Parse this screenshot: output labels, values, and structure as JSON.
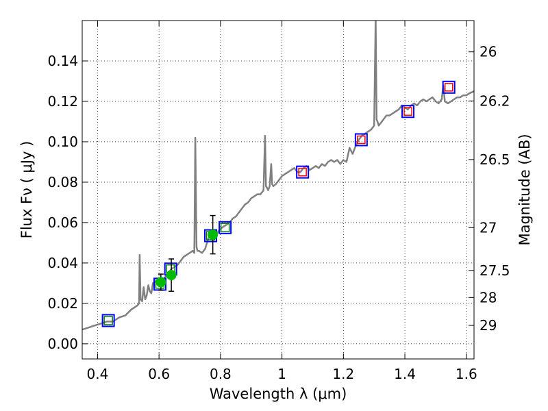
{
  "chart_data": {
    "type": "line",
    "x_range": [
      0.35,
      1.625
    ],
    "y_range": [
      -0.0075,
      0.16
    ],
    "xlabel": "Wavelength  λ (μm)",
    "ylabel": "Flux  Fν  ( μJy )",
    "y2label": "Magnitude (AB)",
    "x_ticks": [
      0.4,
      0.6,
      0.8,
      1.0,
      1.2,
      1.4,
      1.6
    ],
    "x_tick_labels": [
      "0.4",
      "0.6",
      "0.8",
      "1",
      "1.2",
      "1.4",
      "1.6"
    ],
    "y_ticks": [
      0.0,
      0.02,
      0.04,
      0.06,
      0.08,
      0.1,
      0.12,
      0.14
    ],
    "y_tick_labels": [
      "0.00",
      "0.02",
      "0.04",
      "0.06",
      "0.08",
      "0.10",
      "0.12",
      "0.14"
    ],
    "y2_ticks": [
      {
        "label": "26",
        "flux": 0.1445
      },
      {
        "label": "26.2",
        "flux": 0.1202
      },
      {
        "label": "26.5",
        "flux": 0.0912
      },
      {
        "label": "27",
        "flux": 0.0575
      },
      {
        "label": "27.5",
        "flux": 0.0363
      },
      {
        "label": "28",
        "flux": 0.0229
      },
      {
        "label": "29",
        "flux": 0.0091
      }
    ],
    "grid": true,
    "colors": {
      "model": "#808080",
      "open_square_outer": "#0000ff",
      "open_square_inner": "#ff0000",
      "optical_square_inner": "#008000",
      "measured_point": "#00bb00",
      "error_bar": "#000000"
    },
    "series": [
      {
        "name": "model spectrum",
        "kind": "line",
        "x": [
          0.35,
          0.37,
          0.39,
          0.41,
          0.43,
          0.45,
          0.47,
          0.49,
          0.51,
          0.52,
          0.53,
          0.535,
          0.537,
          0.54,
          0.545,
          0.55,
          0.555,
          0.56,
          0.565,
          0.57,
          0.575,
          0.58,
          0.59,
          0.6,
          0.61,
          0.62,
          0.63,
          0.64,
          0.65,
          0.66,
          0.67,
          0.68,
          0.69,
          0.7,
          0.71,
          0.715,
          0.718,
          0.722,
          0.725,
          0.73,
          0.74,
          0.75,
          0.76,
          0.77,
          0.78,
          0.79,
          0.8,
          0.81,
          0.82,
          0.83,
          0.84,
          0.85,
          0.86,
          0.87,
          0.88,
          0.89,
          0.9,
          0.91,
          0.92,
          0.93,
          0.94,
          0.945,
          0.948,
          0.952,
          0.955,
          0.96,
          0.965,
          0.968,
          0.972,
          0.98,
          0.99,
          1.0,
          1.01,
          1.02,
          1.03,
          1.04,
          1.05,
          1.06,
          1.07,
          1.08,
          1.09,
          1.1,
          1.11,
          1.12,
          1.13,
          1.14,
          1.15,
          1.16,
          1.17,
          1.18,
          1.19,
          1.2,
          1.21,
          1.22,
          1.23,
          1.24,
          1.25,
          1.26,
          1.27,
          1.28,
          1.29,
          1.3,
          1.305,
          1.308,
          1.311,
          1.315,
          1.32,
          1.33,
          1.34,
          1.35,
          1.36,
          1.37,
          1.38,
          1.39,
          1.4,
          1.41,
          1.42,
          1.43,
          1.44,
          1.45,
          1.46,
          1.47,
          1.48,
          1.49,
          1.5,
          1.51,
          1.52,
          1.525,
          1.53,
          1.54,
          1.55,
          1.56,
          1.57,
          1.58,
          1.59,
          1.6,
          1.61,
          1.625
        ],
        "y": [
          0.007,
          0.008,
          0.009,
          0.01,
          0.011,
          0.011,
          0.013,
          0.014,
          0.017,
          0.018,
          0.019,
          0.02,
          0.044,
          0.022,
          0.021,
          0.028,
          0.022,
          0.024,
          0.029,
          0.026,
          0.025,
          0.03,
          0.031,
          0.03,
          0.031,
          0.033,
          0.035,
          0.037,
          0.038,
          0.039,
          0.041,
          0.043,
          0.044,
          0.045,
          0.046,
          0.045,
          0.102,
          0.048,
          0.046,
          0.046,
          0.045,
          0.047,
          0.052,
          0.054,
          0.055,
          0.055,
          0.057,
          0.058,
          0.059,
          0.06,
          0.062,
          0.063,
          0.065,
          0.067,
          0.069,
          0.07,
          0.072,
          0.073,
          0.074,
          0.074,
          0.076,
          0.103,
          0.078,
          0.077,
          0.076,
          0.078,
          0.089,
          0.079,
          0.078,
          0.079,
          0.081,
          0.083,
          0.084,
          0.085,
          0.086,
          0.087,
          0.085,
          0.085,
          0.087,
          0.088,
          0.086,
          0.087,
          0.088,
          0.087,
          0.089,
          0.088,
          0.09,
          0.091,
          0.09,
          0.091,
          0.089,
          0.091,
          0.09,
          0.097,
          0.094,
          0.098,
          0.101,
          0.103,
          0.104,
          0.105,
          0.106,
          0.108,
          0.162,
          0.111,
          0.11,
          0.108,
          0.109,
          0.111,
          0.113,
          0.113,
          0.114,
          0.115,
          0.116,
          0.118,
          0.117,
          0.116,
          0.118,
          0.119,
          0.118,
          0.12,
          0.121,
          0.12,
          0.121,
          0.122,
          0.12,
          0.119,
          0.121,
          0.128,
          0.12,
          0.119,
          0.12,
          0.121,
          0.122,
          0.122,
          0.123,
          0.123,
          0.124,
          0.125
        ]
      },
      {
        "name": "blue/red open squares",
        "kind": "square",
        "x": [
          1.067,
          1.258,
          1.41,
          1.543
        ],
        "y": [
          0.085,
          0.101,
          0.115,
          0.127
        ]
      },
      {
        "name": "blue/green open squares",
        "kind": "square",
        "x": [
          0.435,
          0.603,
          0.638,
          0.768,
          0.815
        ],
        "y": [
          0.0115,
          0.0295,
          0.037,
          0.0535,
          0.0575
        ]
      },
      {
        "name": "measured points",
        "kind": "errorbar",
        "x": [
          0.606,
          0.64,
          0.775
        ],
        "y": [
          0.0305,
          0.034,
          0.054
        ],
        "yerr": [
          0.004,
          0.008,
          0.0095
        ]
      }
    ]
  }
}
